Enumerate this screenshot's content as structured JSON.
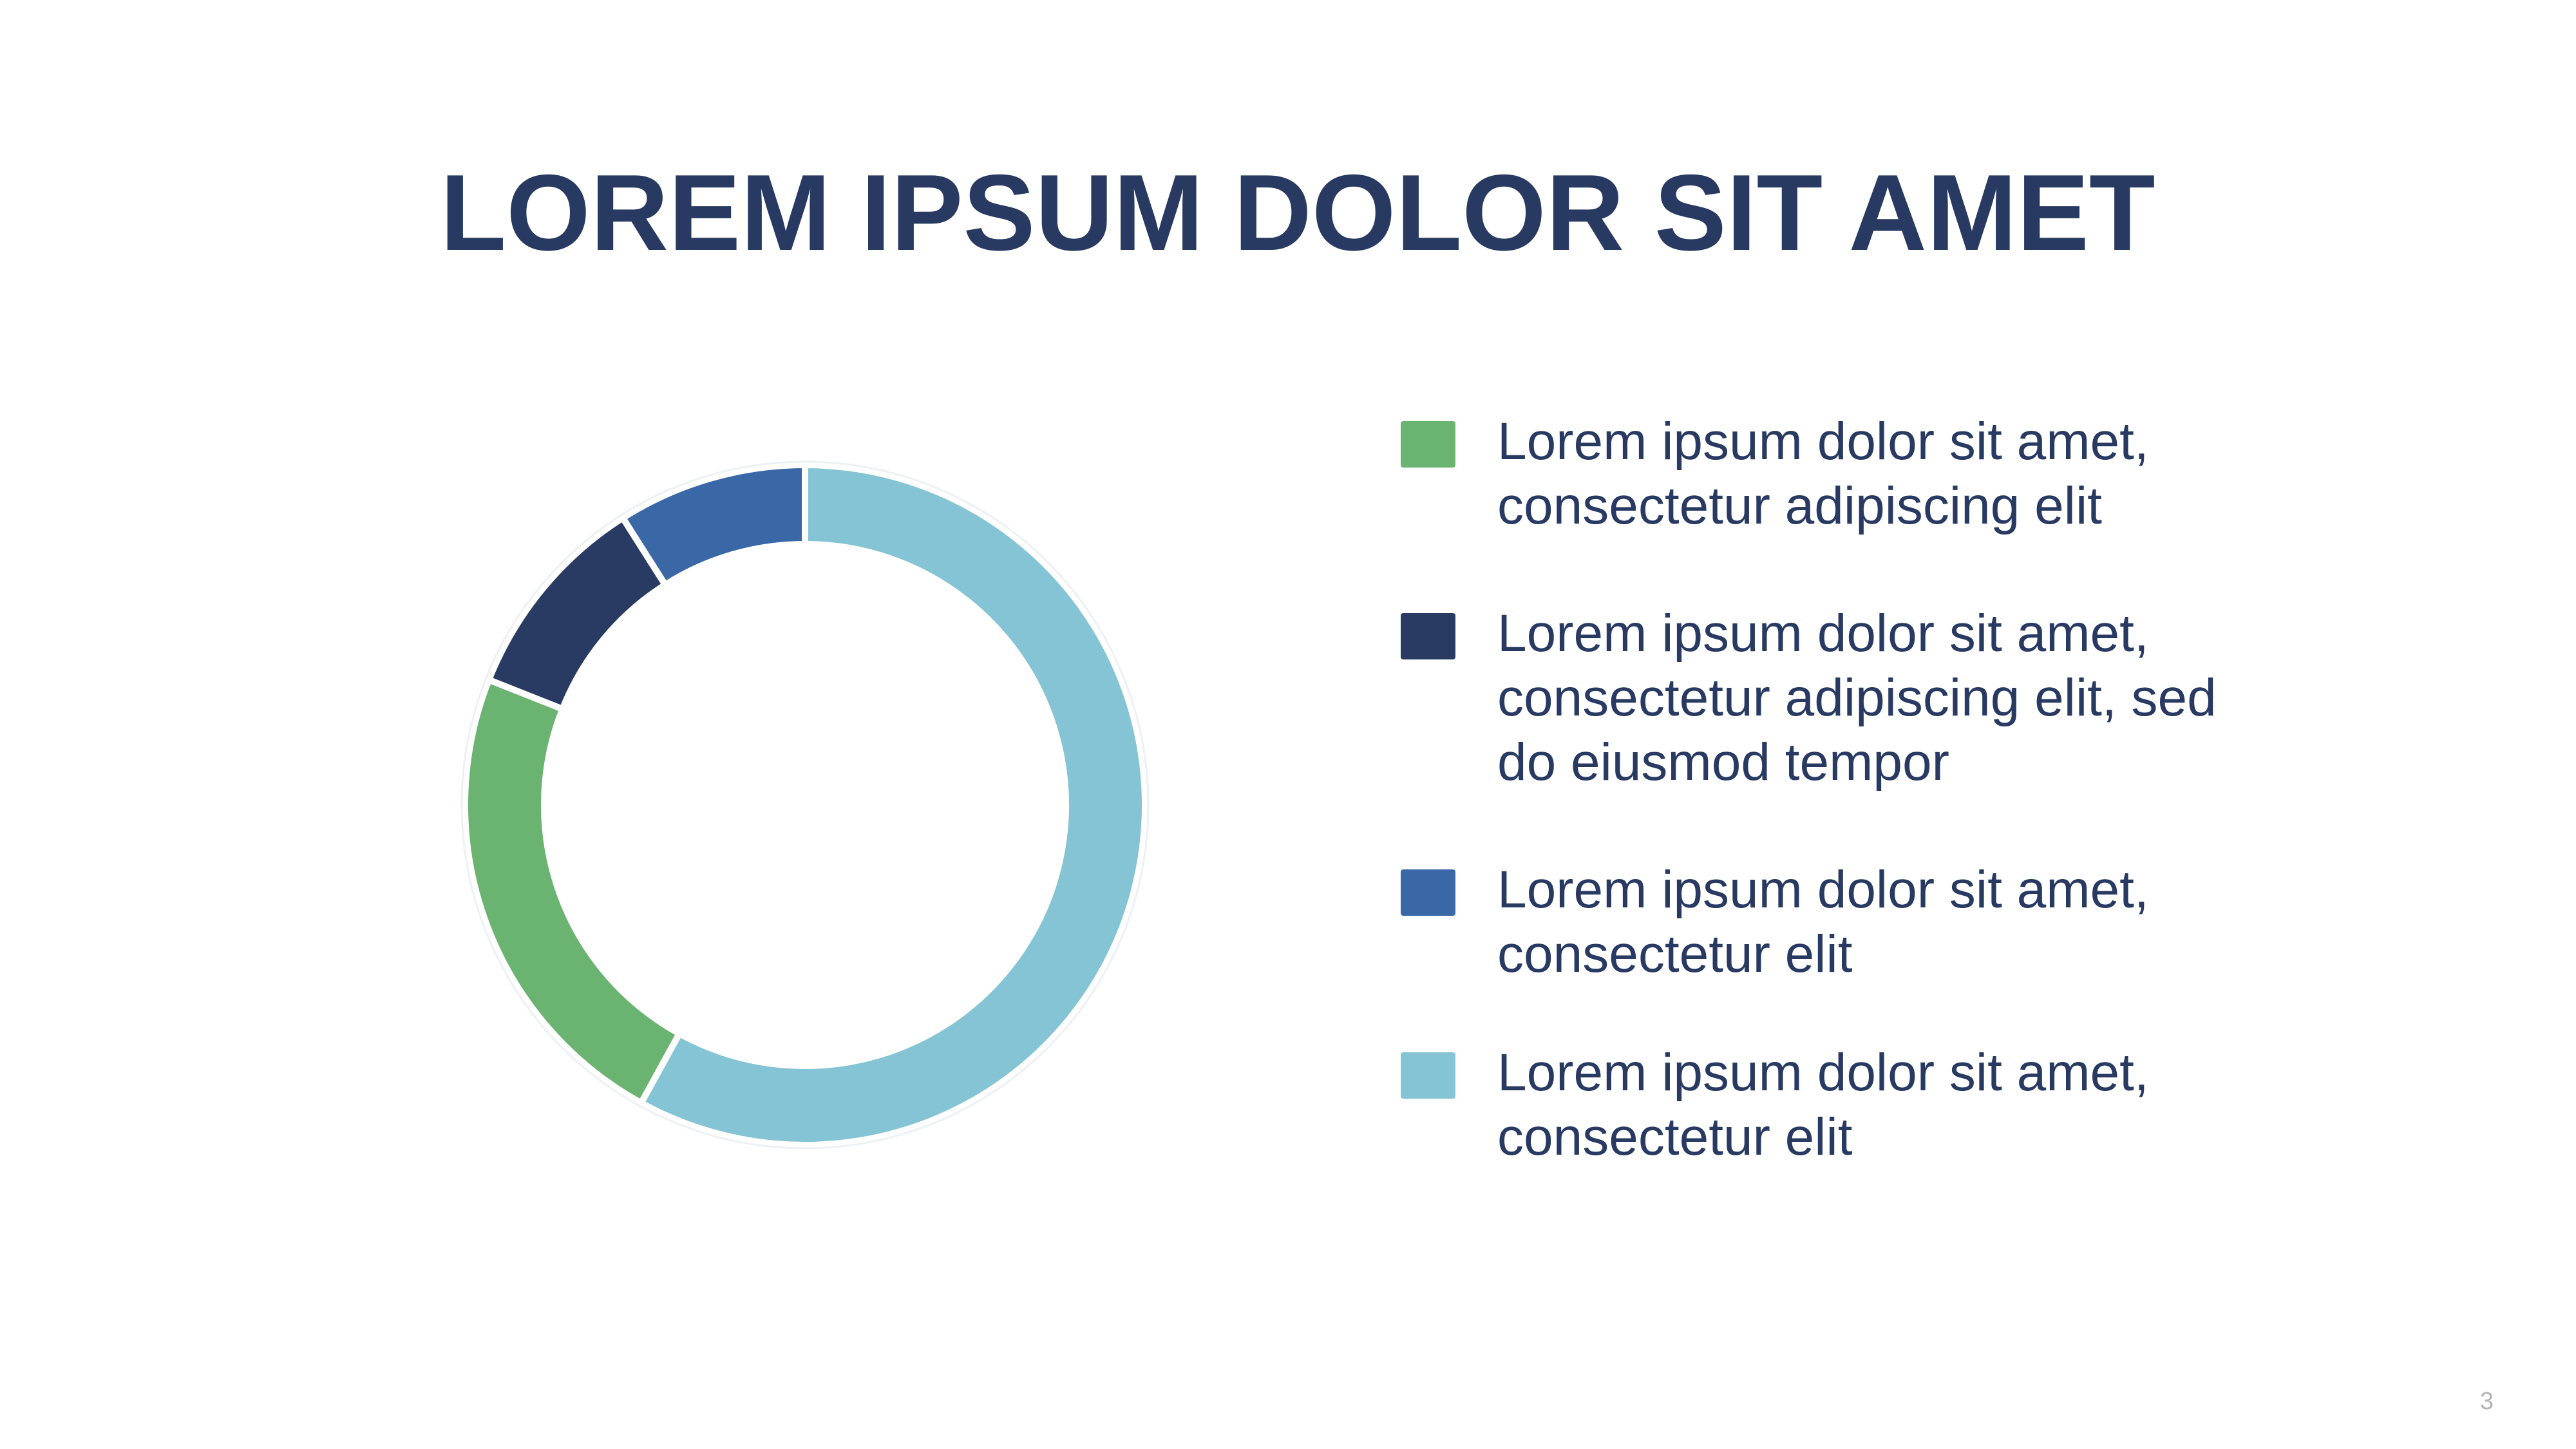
{
  "slide": {
    "title": "LOREM IPSUM DOLOR SIT AMET",
    "page_number": "3"
  },
  "chart_data": {
    "type": "pie",
    "style": "donut",
    "title": "LOREM IPSUM DOLOR SIT AMET",
    "legend_position": "right",
    "slices": [
      {
        "label": "Lorem ipsum dolor sit amet, consectetur elit",
        "value": 58,
        "color": "#85C4D5"
      },
      {
        "label": "Lorem ipsum dolor sit amet, consectetur adipiscing elit",
        "value": 23,
        "color": "#6BB371"
      },
      {
        "label": "Lorem ipsum dolor sit amet, consectetur adipiscing elit, sed do eiusmod tempor",
        "value": 10,
        "color": "#293B62"
      },
      {
        "label": "Lorem ipsum dolor sit amet, consectetur elit",
        "value": 9,
        "color": "#3A68A6"
      }
    ]
  },
  "legend": [
    {
      "line1": "Lorem ipsum dolor sit amet,",
      "line2": "consectetur adipiscing elit",
      "line3": "",
      "color": "#6BB371"
    },
    {
      "line1": "Lorem ipsum dolor sit amet,",
      "line2": "consectetur adipiscing elit, sed",
      "line3": "do eiusmod tempor",
      "color": "#293B62"
    },
    {
      "line1": "Lorem ipsum dolor sit amet,",
      "line2": "consectetur elit",
      "line3": "",
      "color": "#3A68A6"
    },
    {
      "line1": "Lorem ipsum dolor sit amet,",
      "line2": "consectetur elit",
      "line3": "",
      "color": "#85C4D5"
    }
  ]
}
